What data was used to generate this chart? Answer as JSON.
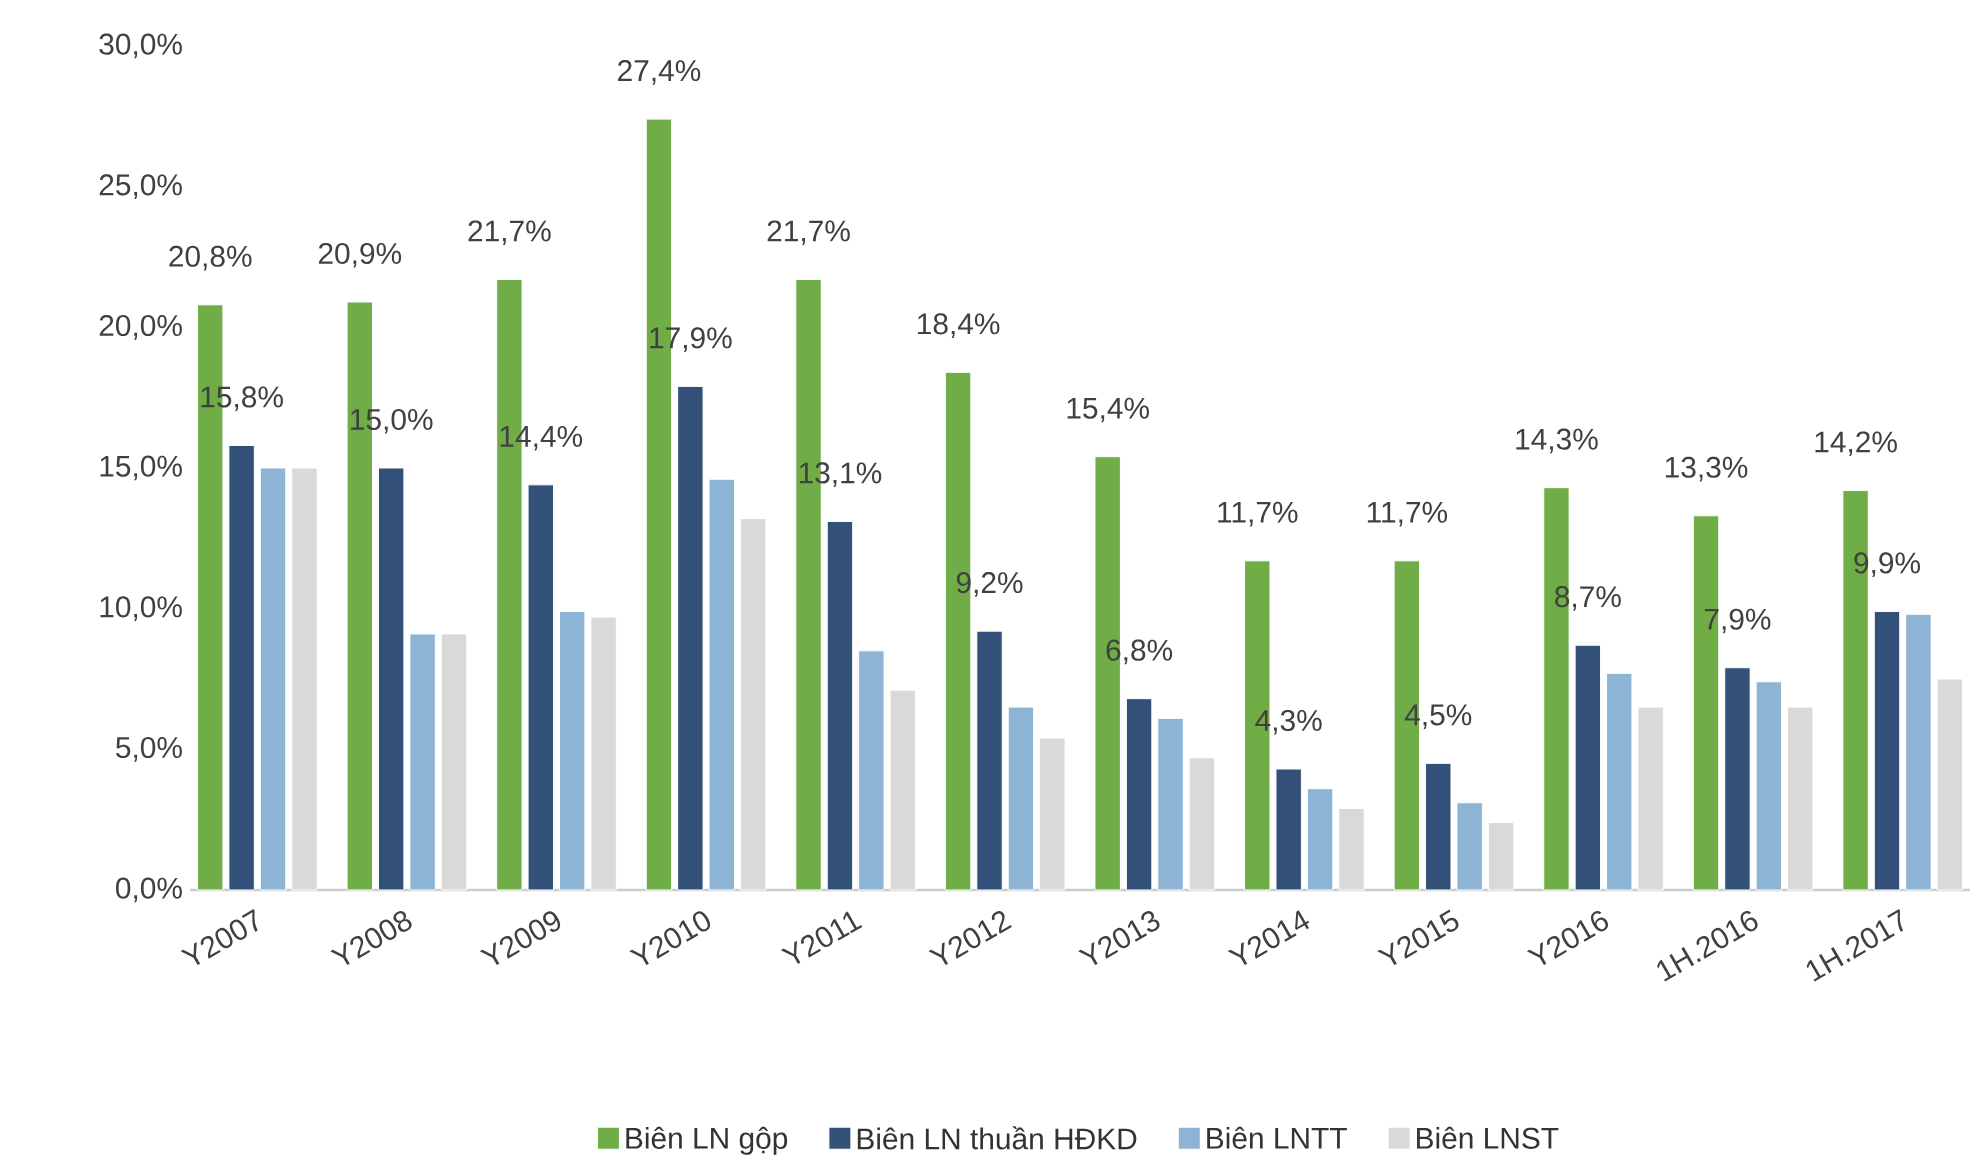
{
  "chart_data": {
    "type": "bar",
    "categories": [
      "Y2007",
      "Y2008",
      "Y2009",
      "Y2010",
      "Y2011",
      "Y2012",
      "Y2013",
      "Y2014",
      "Y2015",
      "Y2016",
      "1H.2016",
      "1H.2017"
    ],
    "series": [
      {
        "name": "Biên LN gộp",
        "color": "#70ad47",
        "values": [
          20.8,
          20.9,
          21.7,
          27.4,
          21.7,
          18.4,
          15.4,
          11.7,
          11.7,
          14.3,
          13.3,
          14.2
        ],
        "value_labels": [
          "20,8%",
          "20,9%",
          "21,7%",
          "27,4%",
          "21,7%",
          "18,4%",
          "15,4%",
          "11,7%",
          "11,7%",
          "14,3%",
          "13,3%",
          "14,2%"
        ]
      },
      {
        "name": "Biên LN thuần HĐKD",
        "color": "#335078",
        "values": [
          15.8,
          15.0,
          14.4,
          17.9,
          13.1,
          9.2,
          6.8,
          4.3,
          4.5,
          8.7,
          7.9,
          9.9
        ],
        "value_labels": [
          "15,8%",
          "15,0%",
          "14,4%",
          "17,9%",
          "13,1%",
          "9,2%",
          "6,8%",
          "4,3%",
          "4,5%",
          "8,7%",
          "7,9%",
          "9,9%"
        ]
      },
      {
        "name": "Biên LNTT",
        "color": "#8db3d5",
        "values": [
          15.0,
          9.1,
          9.9,
          14.6,
          8.5,
          6.5,
          6.1,
          3.6,
          3.1,
          7.7,
          7.4,
          9.8
        ]
      },
      {
        "name": "Biên LNST",
        "color": "#d9d9d9",
        "values": [
          15.0,
          9.1,
          9.7,
          13.2,
          7.1,
          5.4,
          4.7,
          2.9,
          2.4,
          6.5,
          6.5,
          7.5
        ]
      }
    ],
    "ylim": [
      0,
      30
    ],
    "yticks": [
      {
        "value": 0,
        "label": "0,0%"
      },
      {
        "value": 5,
        "label": "5,0%"
      },
      {
        "value": 10,
        "label": "10,0%"
      },
      {
        "value": 15,
        "label": "15,0%"
      },
      {
        "value": 20,
        "label": "20,0%"
      },
      {
        "value": 25,
        "label": "25,0%"
      },
      {
        "value": 30,
        "label": "30,0%"
      }
    ],
    "legend": "bottom",
    "grid": false
  }
}
